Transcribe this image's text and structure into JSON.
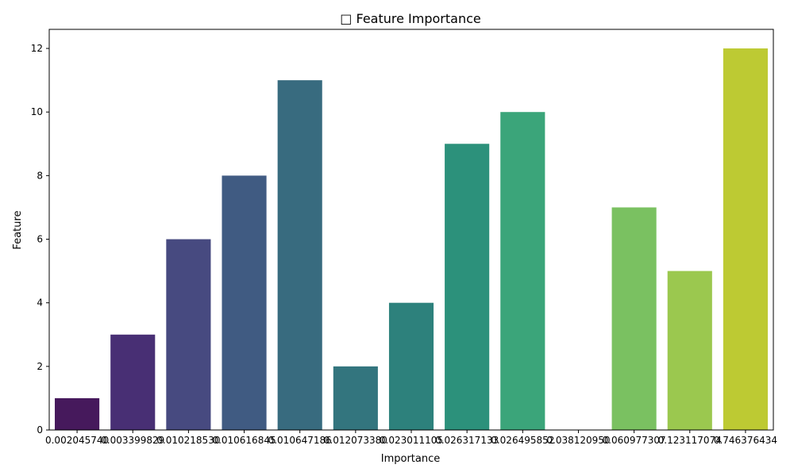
{
  "chart_data": {
    "type": "bar",
    "title": "□ Feature Importance",
    "xlabel": "Importance",
    "ylabel": "Feature",
    "ylim": [
      0,
      12.6
    ],
    "yticks": [
      0,
      2,
      4,
      6,
      8,
      10,
      12
    ],
    "grid": false,
    "categories": [
      "0.002045740",
      "0.003399829",
      "0.010218530",
      "0.010616845",
      "0.010647186",
      "0.012073380",
      "0.023011105",
      "0.026317133",
      "0.026495852",
      "0.038120950",
      "0.060977307",
      "0.123117074",
      "0.746376434"
    ],
    "values": [
      1,
      3,
      6,
      8,
      11,
      2,
      4,
      9,
      10,
      0,
      7,
      5,
      12
    ],
    "colors": [
      "#46195c",
      "#482f74",
      "#474a80",
      "#405b82",
      "#386b7f",
      "#33757e",
      "#2d817c",
      "#2c917b",
      "#3ba57a",
      "#55b46c",
      "#7ac161",
      "#9bc84f",
      "#bdca33"
    ]
  }
}
